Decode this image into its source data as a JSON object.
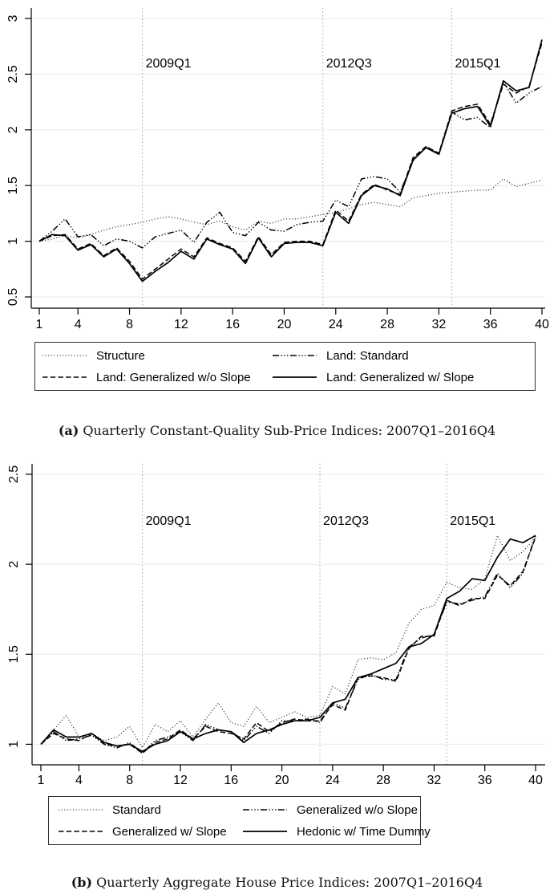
{
  "figure": {
    "background": "#ffffff",
    "text_color": "#000000",
    "axis_color": "#000000",
    "grid_color": "#e8e8e8",
    "refline_color": "#ababab",
    "legend_border_color": "#333333"
  },
  "chart_data": [
    {
      "id": "a",
      "type": "line",
      "caption_label": "(a)",
      "caption_text": "Quarterly Constant-Quality Sub-Price Indices: 2007Q1–2016Q4",
      "xlabel": "",
      "ylabel": "",
      "xlim": [
        1,
        40
      ],
      "ylim": [
        0.4,
        3.09
      ],
      "x_start": 1,
      "x_ticks": [
        1,
        4,
        8,
        12,
        16,
        20,
        24,
        28,
        32,
        36,
        40
      ],
      "y_ticks": [
        "0.5",
        "1",
        "1.5",
        "2",
        "2.5",
        "3"
      ],
      "grid": "horizontal",
      "legend_position": "below",
      "reference_lines": [
        {
          "x": 9,
          "label": "2009Q1"
        },
        {
          "x": 23,
          "label": "2012Q3"
        },
        {
          "x": 33,
          "label": "2015Q1"
        }
      ],
      "series": [
        {
          "name": "Structure",
          "style": "dotted",
          "values": [
            1.0,
            1.02,
            1.05,
            1.03,
            1.06,
            1.1,
            1.13,
            1.15,
            1.17,
            1.2,
            1.22,
            1.2,
            1.17,
            1.15,
            1.18,
            1.13,
            1.1,
            1.18,
            1.16,
            1.2,
            1.2,
            1.22,
            1.24,
            1.26,
            1.29,
            1.33,
            1.35,
            1.33,
            1.31,
            1.39,
            1.41,
            1.43,
            1.44,
            1.45,
            1.46,
            1.46,
            1.56,
            1.49,
            1.52,
            1.55
          ]
        },
        {
          "name": "Land: Standard",
          "style": "dashdot",
          "values": [
            1.0,
            1.09,
            1.2,
            1.04,
            1.06,
            0.96,
            1.02,
            1.0,
            0.94,
            1.04,
            1.07,
            1.1,
            0.99,
            1.17,
            1.26,
            1.08,
            1.05,
            1.17,
            1.1,
            1.09,
            1.15,
            1.17,
            1.18,
            1.37,
            1.31,
            1.56,
            1.58,
            1.56,
            1.44,
            1.72,
            1.85,
            1.78,
            2.16,
            2.09,
            2.11,
            2.02,
            2.43,
            2.24,
            2.33,
            2.39
          ]
        },
        {
          "name": "Land: Generalized w/o Slope",
          "style": "dashed",
          "values": [
            1.0,
            1.05,
            1.06,
            0.93,
            0.98,
            0.87,
            0.94,
            0.82,
            0.66,
            0.75,
            0.84,
            0.93,
            0.86,
            1.03,
            0.98,
            0.94,
            0.82,
            1.04,
            0.88,
            0.99,
            1.0,
            1.0,
            0.97,
            1.28,
            1.18,
            1.42,
            1.51,
            1.46,
            1.42,
            1.75,
            1.85,
            1.79,
            2.17,
            2.21,
            2.23,
            2.05,
            2.41,
            2.33,
            2.39,
            2.78
          ]
        },
        {
          "name": "Land: Generalized w/ Slope",
          "style": "solid",
          "values": [
            1.0,
            1.06,
            1.05,
            0.92,
            0.97,
            0.86,
            0.93,
            0.8,
            0.64,
            0.73,
            0.81,
            0.91,
            0.84,
            1.02,
            0.97,
            0.93,
            0.8,
            1.03,
            0.86,
            0.98,
            0.99,
            0.99,
            0.96,
            1.26,
            1.16,
            1.41,
            1.5,
            1.47,
            1.41,
            1.73,
            1.84,
            1.78,
            2.15,
            2.19,
            2.21,
            2.03,
            2.44,
            2.35,
            2.38,
            2.81
          ]
        }
      ]
    },
    {
      "id": "b",
      "type": "line",
      "caption_label": "(b)",
      "caption_text": "Quarterly Aggregate House Price Indices: 2007Q1–2016Q4",
      "xlabel": "",
      "ylabel": "",
      "xlim": [
        1,
        40
      ],
      "ylim": [
        0.88,
        2.56
      ],
      "x_start": 1,
      "x_ticks": [
        1,
        4,
        8,
        12,
        16,
        20,
        24,
        28,
        32,
        36,
        40
      ],
      "y_ticks": [
        "1",
        "1.5",
        "2",
        "2.5"
      ],
      "grid": "horizontal",
      "legend_position": "below",
      "reference_lines": [
        {
          "x": 9,
          "label": "2009Q1"
        },
        {
          "x": 23,
          "label": "2012Q3"
        },
        {
          "x": 33,
          "label": "2015Q1"
        }
      ],
      "series": [
        {
          "name": "Standard",
          "style": "dotted",
          "values": [
            1.0,
            1.08,
            1.16,
            1.04,
            1.06,
            1.02,
            1.04,
            1.1,
            0.98,
            1.11,
            1.07,
            1.13,
            1.04,
            1.14,
            1.23,
            1.12,
            1.1,
            1.21,
            1.12,
            1.15,
            1.18,
            1.15,
            1.16,
            1.32,
            1.28,
            1.47,
            1.48,
            1.47,
            1.51,
            1.67,
            1.75,
            1.77,
            1.9,
            1.87,
            1.86,
            1.92,
            2.16,
            2.02,
            2.07,
            2.15
          ]
        },
        {
          "name": "Generalized w/o Slope",
          "style": "dashdot",
          "values": [
            1.0,
            1.07,
            1.02,
            1.03,
            1.05,
            1.0,
            0.98,
            1.01,
            0.95,
            1.02,
            1.04,
            1.07,
            1.02,
            1.11,
            1.08,
            1.07,
            1.02,
            1.1,
            1.06,
            1.13,
            1.13,
            1.14,
            1.12,
            1.23,
            1.2,
            1.36,
            1.39,
            1.36,
            1.36,
            1.54,
            1.59,
            1.61,
            1.79,
            1.78,
            1.8,
            1.82,
            1.95,
            1.87,
            1.95,
            2.16
          ]
        },
        {
          "name": "Generalized w/ Slope",
          "style": "dashed",
          "values": [
            1.0,
            1.06,
            1.03,
            1.02,
            1.06,
            1.0,
            0.99,
            1.0,
            0.95,
            1.01,
            1.03,
            1.08,
            1.03,
            1.1,
            1.07,
            1.06,
            1.03,
            1.12,
            1.07,
            1.12,
            1.14,
            1.13,
            1.13,
            1.22,
            1.19,
            1.37,
            1.38,
            1.37,
            1.35,
            1.53,
            1.6,
            1.6,
            1.8,
            1.77,
            1.81,
            1.81,
            1.94,
            1.88,
            1.96,
            2.15
          ]
        },
        {
          "name": "Hedonic w/ Time Dummy",
          "style": "solid",
          "values": [
            1.0,
            1.08,
            1.04,
            1.04,
            1.06,
            1.01,
            0.99,
            1.0,
            0.96,
            1.0,
            1.02,
            1.07,
            1.03,
            1.06,
            1.08,
            1.07,
            1.01,
            1.06,
            1.08,
            1.11,
            1.13,
            1.13,
            1.15,
            1.23,
            1.25,
            1.37,
            1.39,
            1.42,
            1.45,
            1.54,
            1.56,
            1.61,
            1.81,
            1.85,
            1.92,
            1.91,
            2.04,
            2.14,
            2.12,
            2.16
          ]
        }
      ]
    }
  ]
}
